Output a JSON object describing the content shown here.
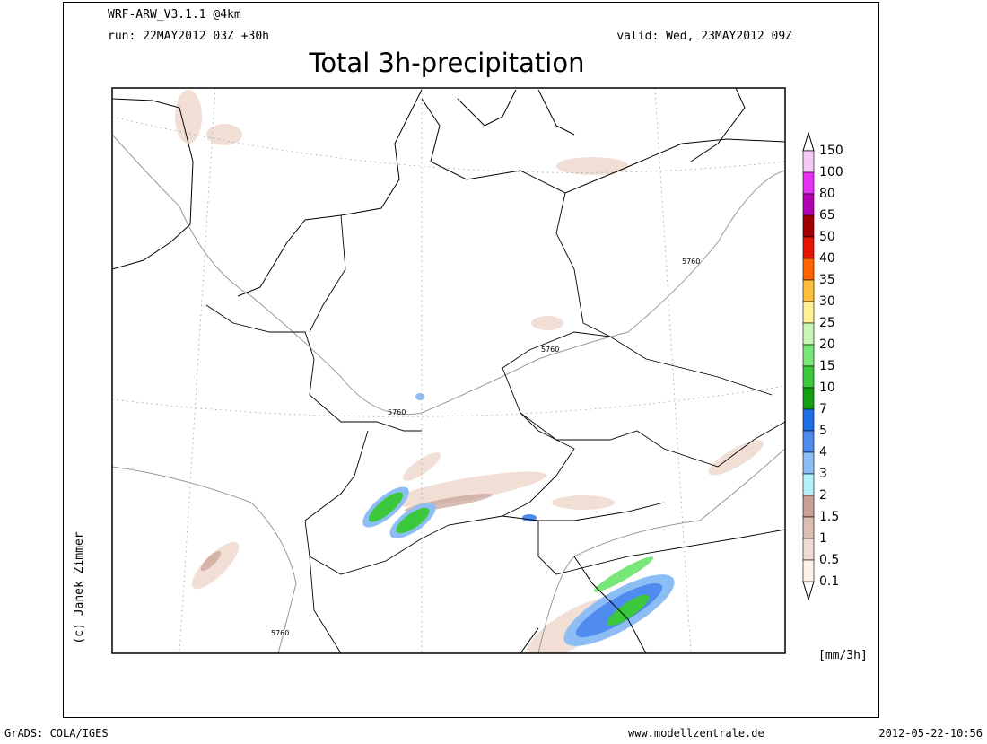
{
  "header": {
    "model": "WRF-ARW_V3.1.1 @4km",
    "run": "run: 22MAY2012 03Z +30h",
    "valid": "valid: Wed, 23MAY2012 09Z",
    "title": "Total 3h-precipitation"
  },
  "legend": {
    "levels": [
      150,
      100,
      80,
      65,
      50,
      40,
      35,
      30,
      25,
      20,
      15,
      10,
      7,
      5,
      4,
      3,
      2,
      1.5,
      1,
      0.5,
      0.1
    ],
    "colors": [
      "#f5c8f5",
      "#e632f0",
      "#b400b4",
      "#a00000",
      "#e61400",
      "#ff6400",
      "#ffbe3c",
      "#fff096",
      "#c8f5b4",
      "#78e678",
      "#3cc83c",
      "#14a014",
      "#1e6ee6",
      "#508cf0",
      "#8cbef5",
      "#b4f0fa",
      "#c8a096",
      "#dcbeb4",
      "#f0dcd2",
      "#fff0e6"
    ],
    "unit": "[mm/3h]"
  },
  "contour_labels": [
    "5760",
    "5760",
    "5760",
    "5760"
  ],
  "copyright": "(c) Janek Zimmer",
  "footer": {
    "left": "GrADS: COLA/IGES",
    "center": "www.modellzentrale.de",
    "right": "2012-05-22-10:56"
  }
}
